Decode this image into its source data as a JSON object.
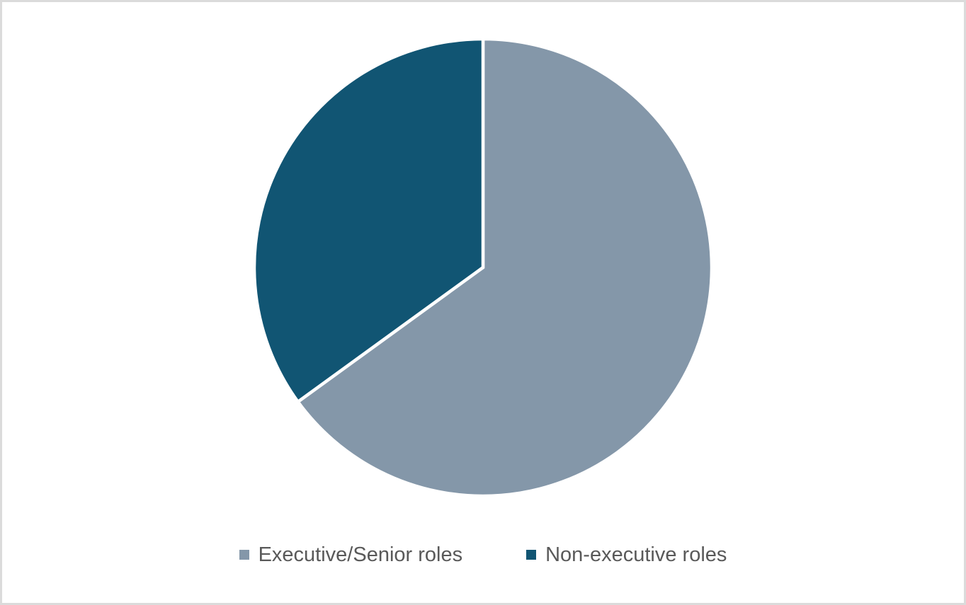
{
  "frame": {
    "border_color": "#dbdbdb",
    "background_color": "#ffffff"
  },
  "chart_data": {
    "type": "pie",
    "title": "",
    "labels": [
      "Executive/Senior roles",
      "Non-executive roles"
    ],
    "values": [
      65,
      35
    ],
    "colors": [
      "#8497A9",
      "#115573"
    ],
    "start_angle_deg": 0,
    "direction": "clockwise",
    "slice_border_color": "#ffffff",
    "legend_position": "bottom",
    "legend_text_color": "#595959"
  },
  "legend": {
    "items": [
      {
        "label": "Executive/Senior roles",
        "color": "#8497A9"
      },
      {
        "label": "Non-executive roles",
        "color": "#115573"
      }
    ]
  }
}
